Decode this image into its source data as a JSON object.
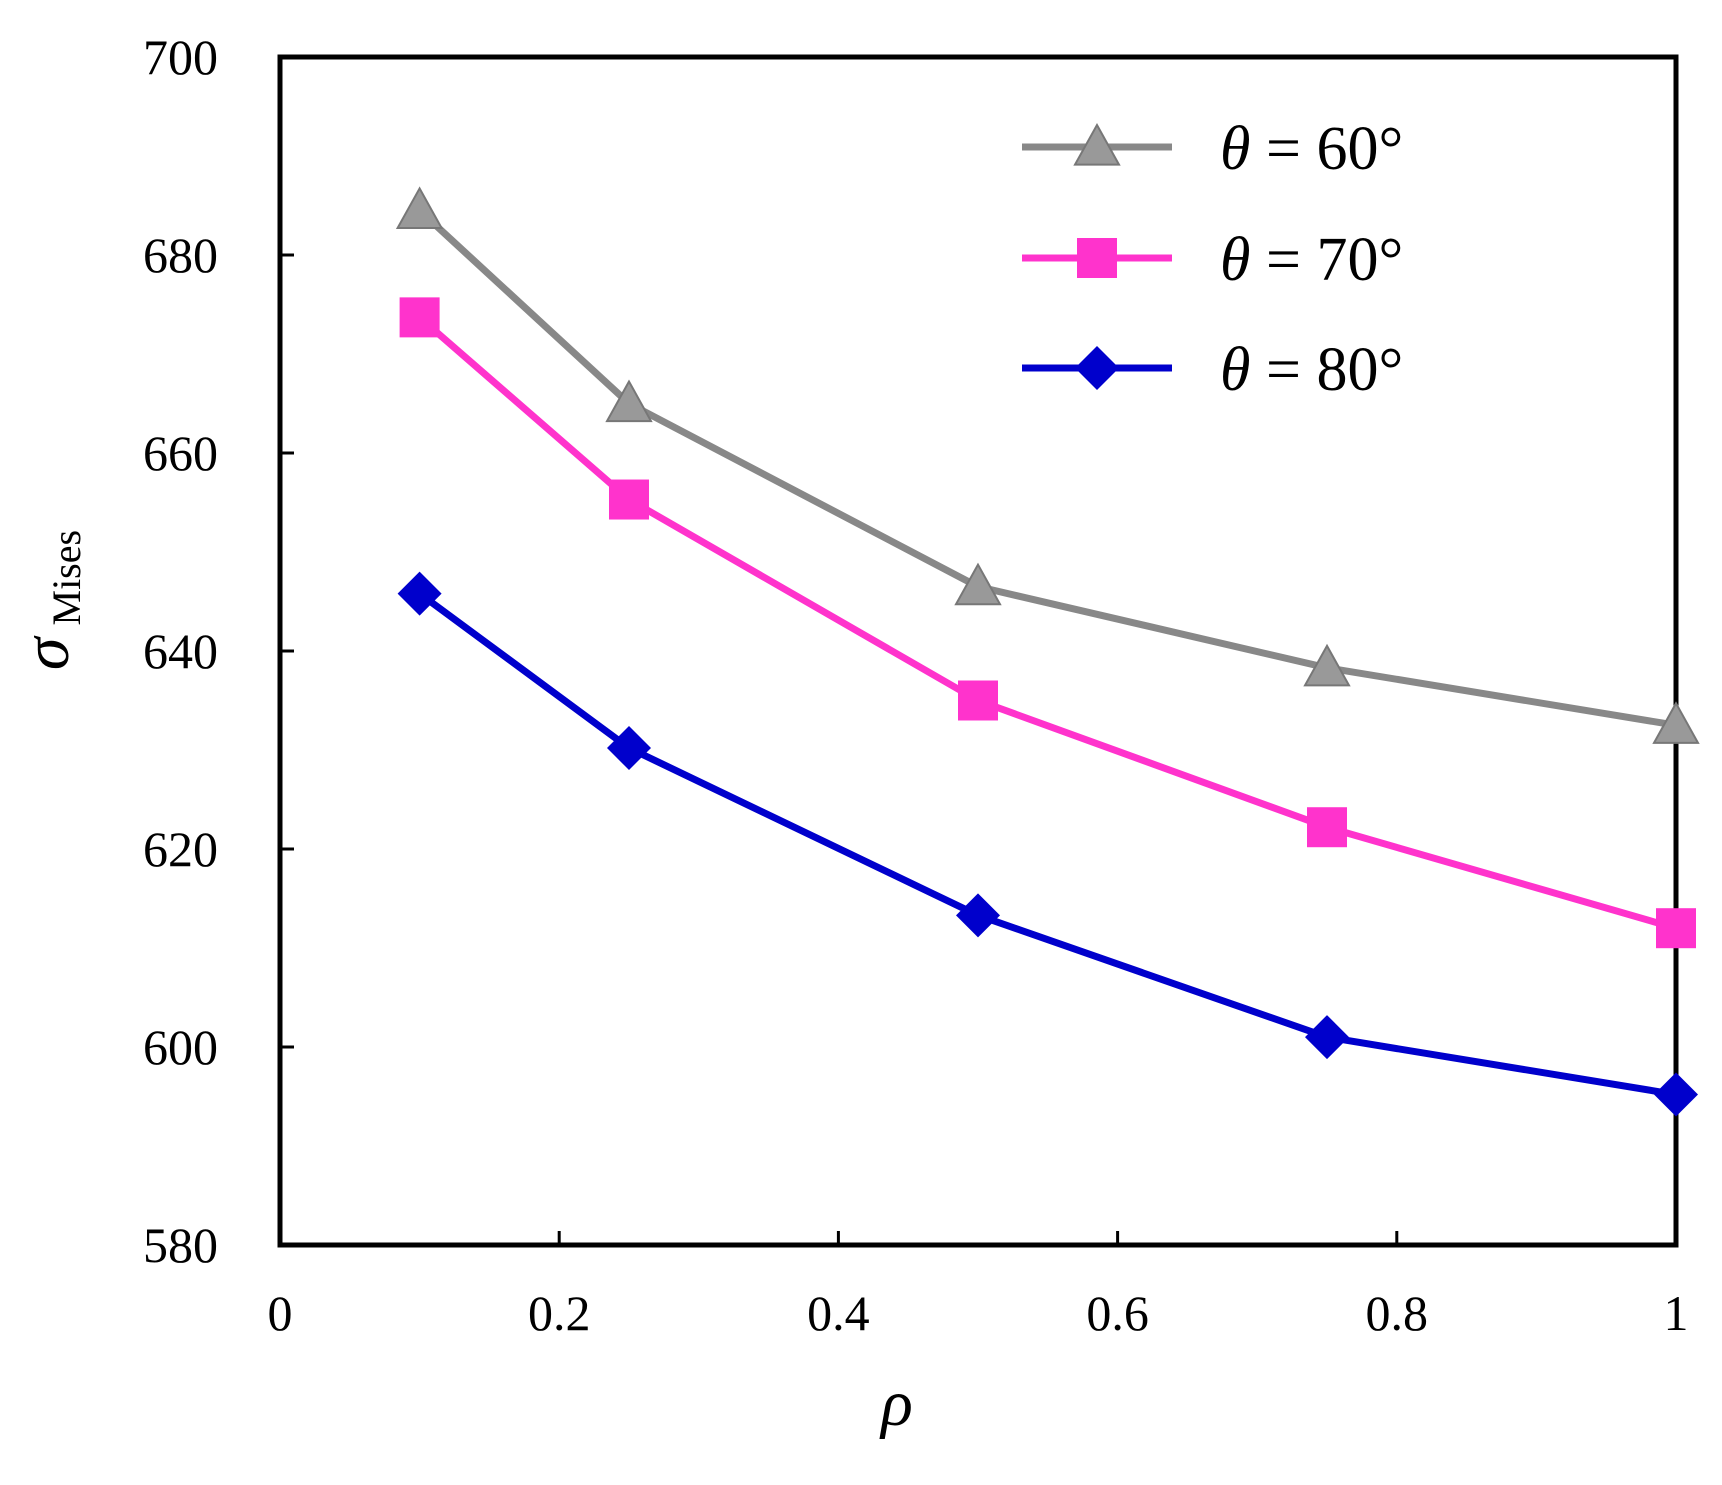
{
  "chart_data": {
    "type": "line",
    "xlabel": "ρ",
    "ylabel": {
      "symbol": "σ",
      "subscript": "Mises"
    },
    "xlim": [
      0,
      1
    ],
    "ylim": [
      580,
      700
    ],
    "xticks": [
      0,
      0.2,
      0.4,
      0.6,
      0.8,
      1
    ],
    "xtick_labels": [
      "0",
      "0.2",
      "0.4",
      "0.6",
      "0.8",
      "1"
    ],
    "yticks": [
      580,
      600,
      620,
      640,
      660,
      680,
      700
    ],
    "ytick_labels": [
      "580",
      "600",
      "620",
      "640",
      "660",
      "680",
      "700"
    ],
    "grid": false,
    "legend_position": "top-right",
    "x": [
      0.1,
      0.25,
      0.5,
      0.75,
      1
    ],
    "series": [
      {
        "name": "θ = 60°",
        "legend": {
          "symbol": "θ",
          "eq": " = ",
          "value": "60°"
        },
        "marker": "triangle",
        "color": "#888888",
        "values": [
          684.5,
          665,
          646.5,
          638.3,
          632.5
        ]
      },
      {
        "name": "θ = 70°",
        "legend": {
          "symbol": "θ",
          "eq": " = ",
          "value": "70°"
        },
        "marker": "square",
        "color": "#ff33cc",
        "values": [
          673.7,
          655.3,
          635,
          622.2,
          612
        ]
      },
      {
        "name": "θ = 80°",
        "legend": {
          "symbol": "θ",
          "eq": " = ",
          "value": "80°"
        },
        "marker": "diamond",
        "color": "#0000cc",
        "values": [
          645.8,
          630.2,
          613.3,
          601,
          595.2
        ]
      }
    ]
  }
}
